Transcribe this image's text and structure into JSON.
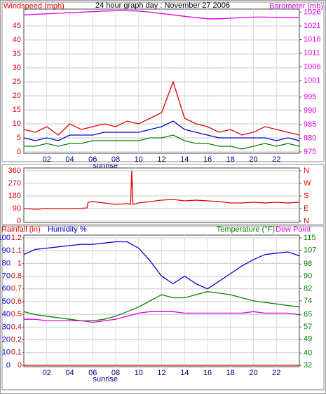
{
  "chart_data": [
    {
      "type": "line",
      "title": "24 hour graph day : November 27 2006",
      "ylabel": "Windspeed (mph)",
      "y2label": "Barometer (mb)",
      "xlim": [
        0,
        24
      ],
      "xticks": [
        {
          "value": 2,
          "label": "02"
        },
        {
          "value": 4,
          "label": "04"
        },
        {
          "value": 6,
          "label": "06"
        },
        {
          "value": 8,
          "label": "08"
        },
        10,
        12,
        14,
        16,
        18,
        20,
        22
      ],
      "ylim": [
        0,
        50
      ],
      "yticks": [
        0,
        5,
        10,
        15,
        20,
        25,
        30,
        35,
        40,
        45
      ],
      "ycolor": "#e00000",
      "y2lim": [
        975,
        1026.1
      ],
      "y2ticks": [
        975,
        980,
        985,
        990,
        995,
        1001,
        1006,
        1011,
        1016,
        1021,
        1026
      ],
      "y2color": "#e000e0",
      "grid": true,
      "annotations": [
        {
          "text": "sunrise",
          "x": 7.1
        }
      ],
      "x": [
        0,
        1,
        2,
        3,
        4,
        5,
        6,
        7,
        8,
        9,
        10,
        11,
        12,
        13,
        14,
        15,
        16,
        17,
        18,
        19,
        20,
        21,
        22,
        23,
        24
      ],
      "series": [
        {
          "color": "#e00000",
          "values": [
            8,
            7,
            9,
            6,
            10,
            8,
            9,
            10,
            9,
            11,
            10,
            12,
            14,
            25,
            12,
            10,
            9,
            7,
            8,
            6,
            7,
            9,
            8,
            7,
            6
          ]
        },
        {
          "color": "#0000d0",
          "values": [
            5,
            4,
            5,
            4,
            6,
            6,
            6,
            7,
            7,
            7,
            7,
            8,
            9,
            11,
            8,
            7,
            6,
            5,
            5,
            5,
            5,
            5,
            4,
            5,
            4
          ]
        },
        {
          "color": "#008000",
          "values": [
            2,
            2,
            3,
            2,
            3,
            3,
            4,
            4,
            4,
            4,
            4,
            5,
            5,
            6,
            4,
            3,
            3,
            2,
            2,
            1,
            2,
            3,
            2,
            3,
            2
          ]
        },
        {
          "color": "#e000e0",
          "axis": "y2",
          "values": [
            1025,
            1025.2,
            1025.4,
            1025.6,
            1025.8,
            1026,
            1026.2,
            1026.4,
            1026.5,
            1026.5,
            1026.4,
            1026,
            1025.5,
            1025,
            1024.5,
            1024,
            1023.6,
            1023.6,
            1023.8,
            1024,
            1024.2,
            1024.2,
            1024.1,
            1024,
            1024
          ]
        }
      ]
    },
    {
      "type": "line",
      "xlim": [
        0,
        24
      ],
      "ylim": [
        0,
        360
      ],
      "yticks": [
        0,
        90,
        180,
        270,
        360
      ],
      "ycolor": "#e00000",
      "y2lim": [
        0,
        360
      ],
      "y2ticks": [
        {
          "value": 0,
          "label": "N"
        },
        {
          "value": 90,
          "label": "E"
        },
        {
          "value": 180,
          "label": "S"
        },
        {
          "value": 270,
          "label": "W"
        },
        {
          "value": 360,
          "label": "N"
        }
      ],
      "y2color": "#e00000",
      "grid": true,
      "x": [
        0,
        1,
        2,
        3,
        4,
        5,
        5.5,
        5.6,
        6,
        7,
        8,
        9,
        9.3,
        9.4,
        9.5,
        10,
        11,
        12,
        13,
        14,
        15,
        16,
        17,
        18,
        19,
        20,
        21,
        22,
        23,
        24
      ],
      "series": [
        {
          "color": "#e00000",
          "values": [
            90,
            85,
            90,
            88,
            90,
            92,
            95,
            135,
            140,
            130,
            120,
            125,
            120,
            360,
            120,
            130,
            140,
            150,
            155,
            145,
            150,
            145,
            140,
            130,
            130,
            135,
            130,
            135,
            130,
            135
          ]
        }
      ]
    },
    {
      "type": "line",
      "ylabel": "Humidity %",
      "y3label": "Rainfall (in)",
      "y2label": "Temperature (°F)",
      "y2label_extra": "Dew Point",
      "xlim": [
        0,
        24
      ],
      "xticks": [
        {
          "value": 2,
          "label": "02"
        },
        {
          "value": 4,
          "label": "04"
        },
        {
          "value": 6,
          "label": "06"
        },
        {
          "value": 8,
          "label": "08"
        },
        10,
        12,
        14,
        16,
        18,
        20,
        22
      ],
      "ylim": [
        0,
        100
      ],
      "yticks": [
        0,
        10,
        20,
        30,
        40,
        50,
        60,
        70,
        80,
        90,
        100
      ],
      "ycolor": "#0000d0",
      "y3lim": [
        0,
        1.2
      ],
      "y3ticks": [
        0,
        {
          "value": 0.12,
          "label": "0.1"
        },
        {
          "value": 0.24,
          "label": "0.2"
        },
        {
          "value": 0.36,
          "label": "0.4"
        },
        {
          "value": 0.48,
          "label": "0.5"
        },
        0.6,
        {
          "value": 0.72,
          "label": "0.7"
        },
        {
          "value": 0.84,
          "label": "0.8"
        },
        {
          "value": 0.96,
          "label": "1"
        },
        {
          "value": 1.08,
          "label": "1.1"
        },
        1.2
      ],
      "y3color": "#e00000",
      "y2lim": [
        32,
        115
      ],
      "y2ticks": [
        32,
        40,
        49,
        57,
        65,
        74,
        82,
        90,
        98,
        107,
        115
      ],
      "y2color": "#008000",
      "grid": true,
      "annotations": [
        {
          "text": "sunrise",
          "x": 7.1
        }
      ],
      "x": [
        0,
        1,
        2,
        3,
        4,
        5,
        6,
        7,
        8,
        9,
        10,
        11,
        12,
        13,
        14,
        15,
        16,
        17,
        18,
        19,
        20,
        21,
        22,
        23,
        24
      ],
      "series": [
        {
          "color": "#e00000",
          "axis": "y3",
          "values": [
            0,
            0,
            0,
            0,
            0,
            0,
            0,
            0,
            0,
            0,
            0,
            0,
            0,
            0,
            0,
            0,
            0,
            0,
            0,
            0,
            0,
            0,
            0,
            0,
            0
          ]
        },
        {
          "color": "#0000d0",
          "values": [
            87,
            91,
            92,
            93,
            94,
            95,
            95,
            96,
            97,
            97,
            92,
            82,
            70,
            64,
            70,
            64,
            60,
            66,
            72,
            78,
            83,
            87,
            88,
            89,
            86
          ]
        },
        {
          "color": "#008000",
          "axis": "y2",
          "values": [
            67,
            65,
            64,
            63,
            62,
            61,
            61,
            62,
            64,
            67,
            70,
            74,
            78,
            76,
            76,
            78,
            80,
            79,
            78,
            76,
            74,
            73,
            72,
            71,
            70
          ]
        },
        {
          "color": "#e000e0",
          "axis": "y2",
          "values": [
            62,
            62,
            61,
            61,
            61,
            61,
            60,
            61,
            62,
            64,
            66,
            67,
            67,
            67,
            66,
            66,
            66,
            66,
            66,
            66,
            67,
            66,
            66,
            66,
            65
          ]
        }
      ]
    }
  ]
}
